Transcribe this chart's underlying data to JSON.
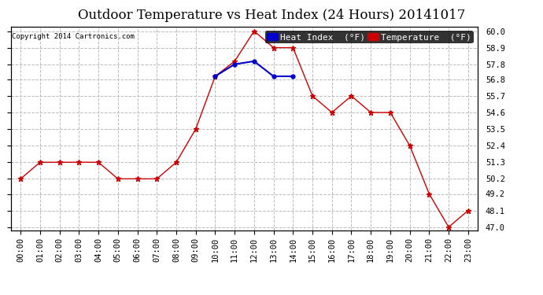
{
  "title": "Outdoor Temperature vs Heat Index (24 Hours) 20141017",
  "copyright": "Copyright 2014 Cartronics.com",
  "background_color": "#ffffff",
  "plot_bg_color": "#ffffff",
  "grid_color": "#bbbbbb",
  "hours": [
    "00:00",
    "01:00",
    "02:00",
    "03:00",
    "04:00",
    "05:00",
    "06:00",
    "07:00",
    "08:00",
    "09:00",
    "10:00",
    "11:00",
    "12:00",
    "13:00",
    "14:00",
    "15:00",
    "16:00",
    "17:00",
    "18:00",
    "19:00",
    "20:00",
    "21:00",
    "22:00",
    "23:00"
  ],
  "temperature": [
    50.2,
    51.3,
    51.3,
    51.3,
    51.3,
    50.2,
    50.2,
    50.2,
    51.3,
    53.5,
    57.0,
    58.0,
    60.0,
    58.9,
    58.9,
    55.7,
    54.6,
    55.7,
    54.6,
    54.6,
    52.4,
    49.2,
    47.0,
    48.1
  ],
  "heat_index": [
    57.0,
    57.8,
    58.0,
    57.0,
    57.0
  ],
  "heat_index_hours": [
    10,
    11,
    12,
    13,
    14
  ],
  "temp_color": "#cc0000",
  "heat_color": "#0000cc",
  "ylim_min": 46.8,
  "ylim_max": 60.3,
  "yticks": [
    47.0,
    48.1,
    49.2,
    50.2,
    51.3,
    52.4,
    53.5,
    54.6,
    55.7,
    56.8,
    57.8,
    58.9,
    60.0
  ],
  "title_fontsize": 12,
  "tick_fontsize": 7.5,
  "legend_fontsize": 8
}
